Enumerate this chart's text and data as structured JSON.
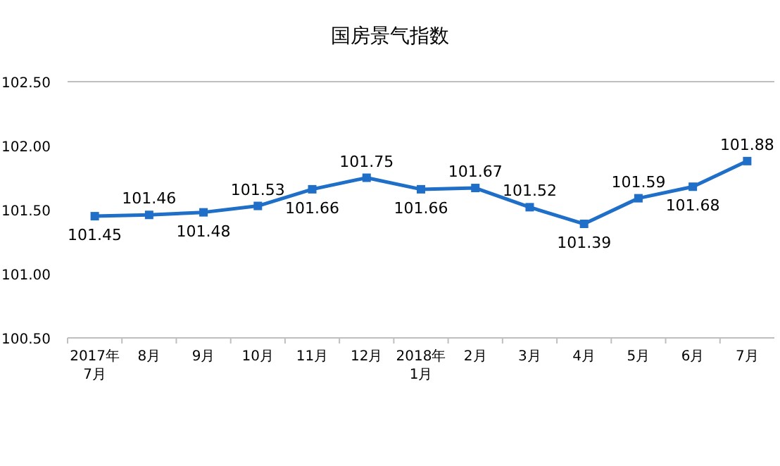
{
  "chart_data": {
    "type": "line",
    "title": "国房景气指数",
    "categories": [
      "2017年\n7月",
      "8月",
      "9月",
      "10月",
      "11月",
      "12月",
      "2018年\n1月",
      "2月",
      "3月",
      "4月",
      "5月",
      "6月",
      "7月"
    ],
    "series": [
      {
        "color": "#1f6fc8",
        "values": [
          101.45,
          101.46,
          101.48,
          101.53,
          101.66,
          101.75,
          101.66,
          101.67,
          101.52,
          101.39,
          101.59,
          101.68,
          101.88
        ]
      }
    ],
    "ylim": [
      100.5,
      102.5
    ],
    "yticks": [
      {
        "value": 100.5,
        "label": "100.50"
      },
      {
        "value": 101,
        "label": "101.00"
      },
      {
        "value": 101.5,
        "label": "101.50"
      },
      {
        "value": 102,
        "label": "102.00"
      },
      {
        "value": 102.5,
        "label": "102.50"
      }
    ],
    "data_labels": true,
    "marker": "square",
    "line_style": "solid",
    "grid": false
  }
}
